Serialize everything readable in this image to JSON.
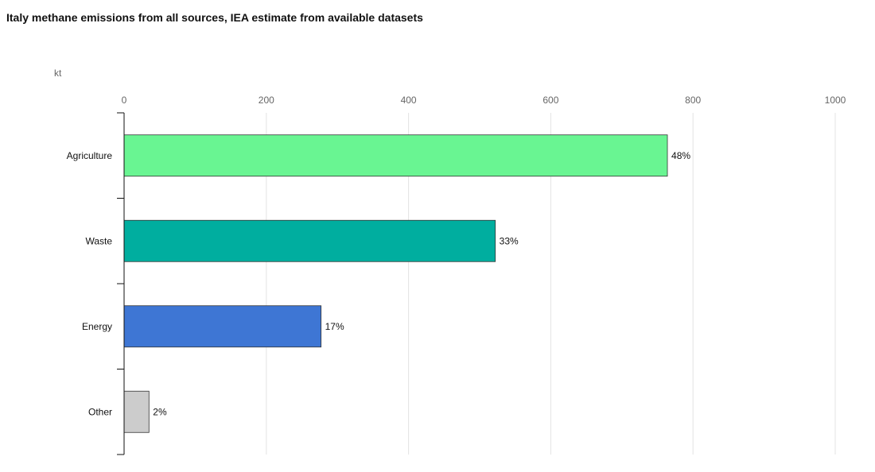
{
  "title": "Italy methane emissions from all sources, IEA estimate from available datasets",
  "chart_data": {
    "type": "bar",
    "orientation": "horizontal",
    "title": "Italy methane emissions from all sources, IEA estimate from available datasets",
    "unit": "kt",
    "xlim": [
      0,
      1000
    ],
    "xticks": [
      0,
      200,
      400,
      600,
      800,
      1000
    ],
    "grid": true,
    "categories": [
      "Agriculture",
      "Waste",
      "Energy",
      "Other"
    ],
    "values": [
      764,
      522,
      277,
      35
    ],
    "data_labels": [
      "48%",
      "33%",
      "17%",
      "2%"
    ],
    "colors": [
      "#69f592",
      "#00ae9f",
      "#3e76d4",
      "#cccccc"
    ]
  }
}
